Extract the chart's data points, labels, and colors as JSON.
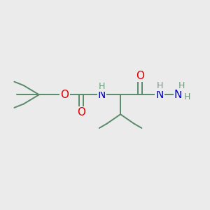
{
  "bg_color": "#ebebeb",
  "bond_color": "#5a8a6a",
  "atom_colors": {
    "O": "#dd0000",
    "N": "#0000cc",
    "H": "#6a9a7a",
    "C": "#5a8a6a"
  },
  "figsize": [
    3.0,
    3.0
  ],
  "dpi": 100,
  "bond_lw": 1.4,
  "font_size_atom": 11,
  "font_size_h": 9
}
